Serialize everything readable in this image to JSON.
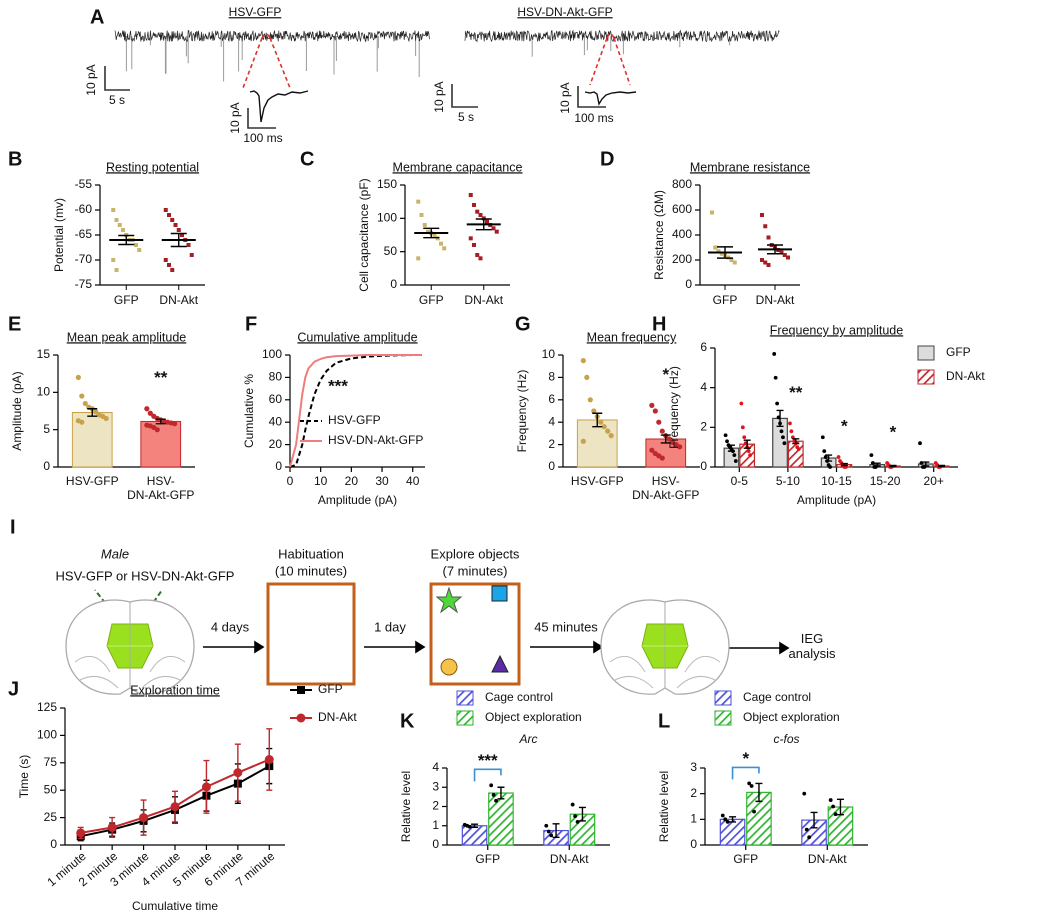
{
  "panel_a": {
    "label": "A",
    "left": {
      "title": "HSV-GFP",
      "scale_y": "10 pA",
      "scale_x": "5 s",
      "inset_y": "10 pA",
      "inset_x": "100 ms"
    },
    "right": {
      "title": "HSV-DN-Akt-GFP",
      "scale_y": "10 pA",
      "scale_x": "5 s",
      "inset_y": "10 pA",
      "inset_x": "100 ms"
    }
  },
  "panel_i": {
    "label": "I",
    "sex": "Male",
    "virus": "HSV-GFP or HSV-DN-Akt-GFP",
    "step1": "4 days",
    "habituation": "Habituation",
    "habituation_time": "(10 minutes)",
    "step2": "1 day",
    "explore": "Explore objects",
    "explore_time": "(7 minutes)",
    "step3": "45 minutes",
    "outcome": "IEG\nanalysis"
  },
  "chart_data": [
    {
      "type": "dotplot",
      "panel": "B",
      "title": "Resting potential",
      "ylabel": "Potential (mv)",
      "categories": [
        "GFP",
        "DN-Akt"
      ],
      "groups": [
        {
          "color": "#c9b46a",
          "points": [
            -60,
            -62,
            -63,
            -64,
            -65,
            -66,
            -66,
            -67,
            -68,
            -70,
            -72
          ],
          "mean": -66,
          "sem": 0.9
        },
        {
          "color": "#a31f24",
          "points": [
            -60,
            -61,
            -62,
            -63,
            -64,
            -65,
            -66,
            -67,
            -69,
            -70,
            -71,
            -72
          ],
          "mean": -66,
          "sem": 1.3
        }
      ],
      "ylim": [
        -75,
        -55
      ],
      "yticks": [
        -75,
        -70,
        -65,
        -60,
        -55
      ]
    },
    {
      "type": "dotplot",
      "panel": "C",
      "title": "Membrane capacitance",
      "ylabel": "Cell capacitance (pF)",
      "categories": [
        "GFP",
        "DN-Akt"
      ],
      "groups": [
        {
          "color": "#c9b46a",
          "points": [
            125,
            105,
            90,
            80,
            78,
            75,
            70,
            62,
            55,
            40
          ],
          "mean": 78,
          "sem": 7
        },
        {
          "color": "#a31f24",
          "points": [
            135,
            120,
            110,
            105,
            100,
            95,
            90,
            85,
            80,
            70,
            60,
            45,
            40
          ],
          "mean": 91,
          "sem": 8
        }
      ],
      "ylim": [
        0,
        150
      ],
      "yticks": [
        0,
        50,
        100,
        150
      ]
    },
    {
      "type": "dotplot",
      "panel": "D",
      "title": "Membrane resistance",
      "ylabel": "Resistance (ΩM)",
      "categories": [
        "GFP",
        "DN-Akt"
      ],
      "groups": [
        {
          "color": "#c9b46a",
          "points": [
            580,
            300,
            270,
            250,
            240,
            220,
            200,
            180
          ],
          "mean": 260,
          "sem": 45
        },
        {
          "color": "#a31f24",
          "points": [
            560,
            470,
            380,
            320,
            300,
            280,
            260,
            240,
            220,
            200,
            180,
            160
          ],
          "mean": 285,
          "sem": 35
        }
      ],
      "ylim": [
        0,
        800
      ],
      "yticks": [
        0,
        200,
        400,
        600,
        800
      ]
    },
    {
      "type": "bar",
      "panel": "E",
      "title": "Mean peak amplitude",
      "ylabel": "Amplitude (pA)",
      "categories": [
        "HSV-GFP",
        "HSV-\nDN-Akt-GFP"
      ],
      "values": [
        7.3,
        6.1
      ],
      "errors": [
        0.5,
        0.3
      ],
      "colors": [
        "#ede4c4",
        "#f4837d"
      ],
      "point_colors": [
        "#c8a24a",
        "#c0282d"
      ],
      "points": [
        [
          12,
          9.5,
          8.5,
          8,
          7.8,
          7.4,
          7,
          6.8,
          6.5,
          6.2,
          6
        ],
        [
          7.8,
          7.2,
          6.8,
          6.5,
          6.3,
          6.1,
          6,
          5.9,
          5.8,
          5.6,
          5.5,
          5.3,
          5
        ]
      ],
      "annotation": "**",
      "ylim": [
        0,
        15
      ],
      "yticks": [
        0,
        5,
        10,
        15
      ]
    },
    {
      "type": "line",
      "panel": "F",
      "title": "Cumulative amplitude",
      "ylabel": "Cumulative %",
      "xlabel": "Amplitude (pA)",
      "x": [
        0,
        2,
        4,
        5,
        6,
        8,
        10,
        12,
        15,
        20,
        25,
        30,
        35,
        40,
        43
      ],
      "series": [
        {
          "name": "HSV-GFP",
          "color": "#000000",
          "dash": true,
          "values": [
            0,
            2,
            20,
            33,
            45,
            65,
            78,
            86,
            93,
            97,
            98.5,
            99.3,
            99.7,
            100,
            100
          ]
        },
        {
          "name": "HSV-DN-Akt-GFP",
          "color": "#f07d7d",
          "dash": false,
          "values": [
            0,
            20,
            65,
            80,
            88,
            94,
            96.5,
            98,
            99,
            99.5,
            100,
            100,
            100,
            100,
            100
          ]
        }
      ],
      "annotation": "***",
      "legend": "lower right",
      "xlim": [
        0,
        44
      ],
      "xticks": [
        0,
        10,
        20,
        30,
        40
      ],
      "ylim": [
        0,
        100
      ],
      "yticks": [
        0,
        20,
        40,
        60,
        80,
        100
      ]
    },
    {
      "type": "bar",
      "panel": "G",
      "title": "Mean frequency",
      "ylabel": "Frequency (Hz)",
      "categories": [
        "HSV-GFP",
        "HSV-\nDN-Akt-GFP"
      ],
      "values": [
        4.2,
        2.5
      ],
      "errors": [
        0.6,
        0.35
      ],
      "colors": [
        "#ede4c4",
        "#f4837d"
      ],
      "point_colors": [
        "#c8a24a",
        "#c0282d"
      ],
      "points": [
        [
          9.5,
          8,
          6,
          5,
          4.5,
          4,
          3.6,
          3.2,
          2.8,
          2.3
        ],
        [
          5.5,
          5,
          4,
          3.2,
          2.8,
          2.5,
          2.2,
          2,
          1.8,
          1.5,
          1.2,
          1,
          0.8
        ]
      ],
      "annotation": "*",
      "ylim": [
        0,
        10
      ],
      "yticks": [
        0,
        2,
        4,
        6,
        8,
        10
      ]
    },
    {
      "type": "grouped_bar",
      "panel": "H",
      "title": "Frequency by amplitude",
      "ylabel": "Frequency (Hz)",
      "xlabel": "Amplitude (pA)",
      "categories": [
        "0-5",
        "5-10",
        "10-15",
        "15-20",
        "20+"
      ],
      "series": [
        {
          "name": "GFP",
          "color": "#dcdcdc",
          "hatch": false,
          "point_color": "#000000",
          "values": [
            0.95,
            2.45,
            0.45,
            0.12,
            0.15
          ],
          "errors": [
            0.15,
            0.4,
            0.15,
            0.07,
            0.1
          ],
          "points": [
            [
              1.6,
              1.3,
              1.1,
              1,
              0.9,
              0.8,
              0.6,
              0.3
            ],
            [
              5.7,
              4.5,
              3.2,
              2.5,
              2.2,
              1.8,
              1.5,
              1.2
            ],
            [
              1.5,
              0.8,
              0.5,
              0.3,
              0.1,
              0
            ],
            [
              0.6,
              0.2,
              0,
              0
            ],
            [
              1.2,
              0.2,
              0,
              0
            ]
          ]
        },
        {
          "name": "DN-Akt",
          "color": "#c0282d",
          "hatch": true,
          "point_color": "#e0141c",
          "values": [
            1.15,
            1.3,
            0.12,
            0.05,
            0.05
          ],
          "errors": [
            0.2,
            0.12,
            0.05,
            0.03,
            0.03
          ],
          "points": [
            [
              3.2,
              2,
              1.5,
              1.2,
              1,
              0.8,
              0.6
            ],
            [
              2.2,
              1.8,
              1.5,
              1.3,
              1.2,
              1,
              0.9
            ],
            [
              0.5,
              0.3,
              0.2,
              0.1,
              0,
              0
            ],
            [
              0.2,
              0.1,
              0,
              0
            ],
            [
              0.2,
              0.1,
              0,
              0
            ]
          ]
        }
      ],
      "annotations": [
        null,
        "**",
        "*",
        "*",
        null
      ],
      "legend": "upper right",
      "ylim": [
        0,
        6
      ],
      "yticks": [
        0,
        2,
        4,
        6
      ]
    },
    {
      "type": "line",
      "panel": "J",
      "title": "Exploration time",
      "ylabel": "Time (s)",
      "xlabel": "Cumulative time",
      "categories": [
        "1 minute",
        "2 minute",
        "3 minute",
        "4 minute",
        "5 minute",
        "6 minute",
        "7 minute"
      ],
      "series": [
        {
          "name": "GFP",
          "color": "#000000",
          "marker": "square",
          "values": [
            8,
            14,
            22,
            32,
            45,
            56,
            72
          ],
          "errors": [
            4,
            6,
            10,
            12,
            14,
            18,
            16
          ]
        },
        {
          "name": "DN-Akt",
          "color": "#c0282d",
          "marker": "circle",
          "values": [
            11,
            16,
            25,
            35,
            53,
            66,
            78
          ],
          "errors": [
            5,
            9,
            16,
            14,
            24,
            26,
            28
          ]
        }
      ],
      "legend": "right",
      "ylim": [
        0,
        125
      ],
      "yticks": [
        0,
        25,
        50,
        75,
        100,
        125
      ]
    },
    {
      "type": "grouped_bar",
      "panel": "K",
      "subtitle": "Arc",
      "ylabel": "Relative level",
      "categories": [
        "GFP",
        "DN-Akt"
      ],
      "series": [
        {
          "name": "Cage control",
          "color": "#5050d8",
          "hatch": true,
          "point_color": "#000000",
          "values": [
            1.0,
            0.75
          ],
          "errors": [
            0.08,
            0.35
          ],
          "points": [
            [
              1.05,
              1.0,
              0.95
            ],
            [
              1.0,
              0.7,
              0.5
            ]
          ]
        },
        {
          "name": "Object exploration",
          "color": "#2fb52f",
          "hatch": true,
          "point_color": "#000000",
          "values": [
            2.7,
            1.6
          ],
          "errors": [
            0.3,
            0.35
          ],
          "points": [
            [
              3.1,
              2.6,
              2.3
            ],
            [
              2.1,
              1.5,
              1.2
            ]
          ]
        }
      ],
      "bracket_annotations": [
        "***",
        null
      ],
      "legend": "top",
      "ylim": [
        0,
        4
      ],
      "yticks": [
        0,
        1,
        2,
        3,
        4
      ]
    },
    {
      "type": "grouped_bar",
      "panel": "L",
      "subtitle": "c-fos",
      "ylabel": "Relative level",
      "categories": [
        "GFP",
        "DN-Akt"
      ],
      "series": [
        {
          "name": "Cage control",
          "color": "#5050d8",
          "hatch": true,
          "point_color": "#000000",
          "values": [
            1.0,
            0.97
          ],
          "errors": [
            0.1,
            0.3
          ],
          "points": [
            [
              1.15,
              1.0,
              0.9
            ],
            [
              2.0,
              0.6,
              0.3
            ]
          ]
        },
        {
          "name": "Object exploration",
          "color": "#2fb52f",
          "hatch": true,
          "point_color": "#000000",
          "values": [
            2.05,
            1.48
          ],
          "errors": [
            0.35,
            0.3
          ],
          "points": [
            [
              2.4,
              2.3,
              1.3
            ],
            [
              1.75,
              1.5,
              1.2
            ]
          ]
        }
      ],
      "bracket_annotations": [
        "*",
        null
      ],
      "legend": "top",
      "ylim": [
        0,
        3
      ],
      "yticks": [
        0,
        1,
        2,
        3
      ]
    }
  ]
}
